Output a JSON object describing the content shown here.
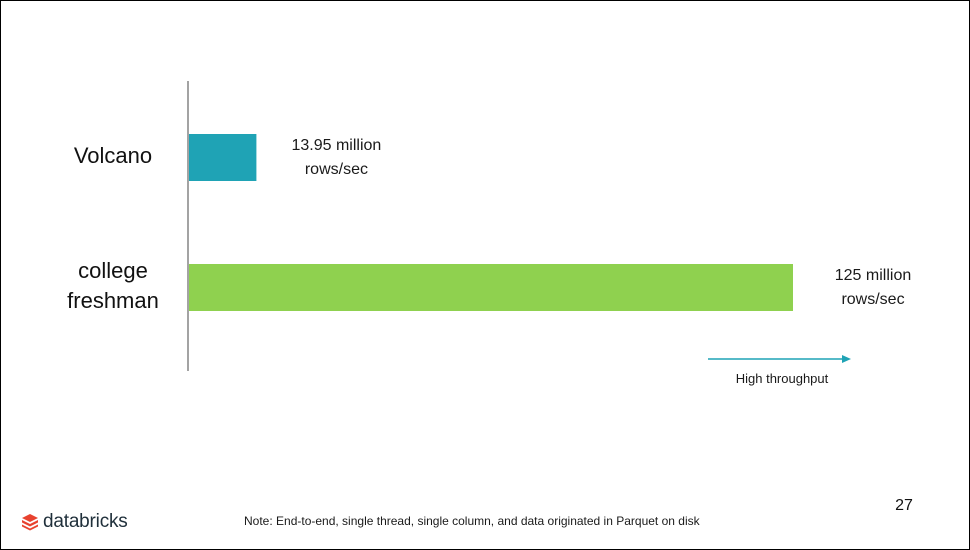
{
  "chart_data": {
    "type": "bar",
    "orientation": "horizontal",
    "categories": [
      "Volcano",
      "college freshman"
    ],
    "category_lines": [
      [
        "Volcano"
      ],
      [
        "college",
        "freshman"
      ]
    ],
    "values": [
      13.95,
      125
    ],
    "value_labels": [
      [
        "13.95 million",
        "rows/sec"
      ],
      [
        "125 million",
        "rows/sec"
      ]
    ],
    "colors": [
      "#1fa3b5",
      "#8fd14f"
    ],
    "title": "",
    "xlabel": "",
    "ylabel": "",
    "xlim": [
      0,
      125
    ],
    "grid": false,
    "legend": "none"
  },
  "annotation": {
    "arrow_caption": "High throughput",
    "arrow_color": "#1fa3b5"
  },
  "footer": {
    "page_number": "27",
    "note": "Note: End-to-end, single thread, single column, and data originated in Parquet on disk",
    "logo_text": "databricks",
    "logo_icon": "databricks-logo-icon",
    "logo_color": "#e8422f"
  }
}
